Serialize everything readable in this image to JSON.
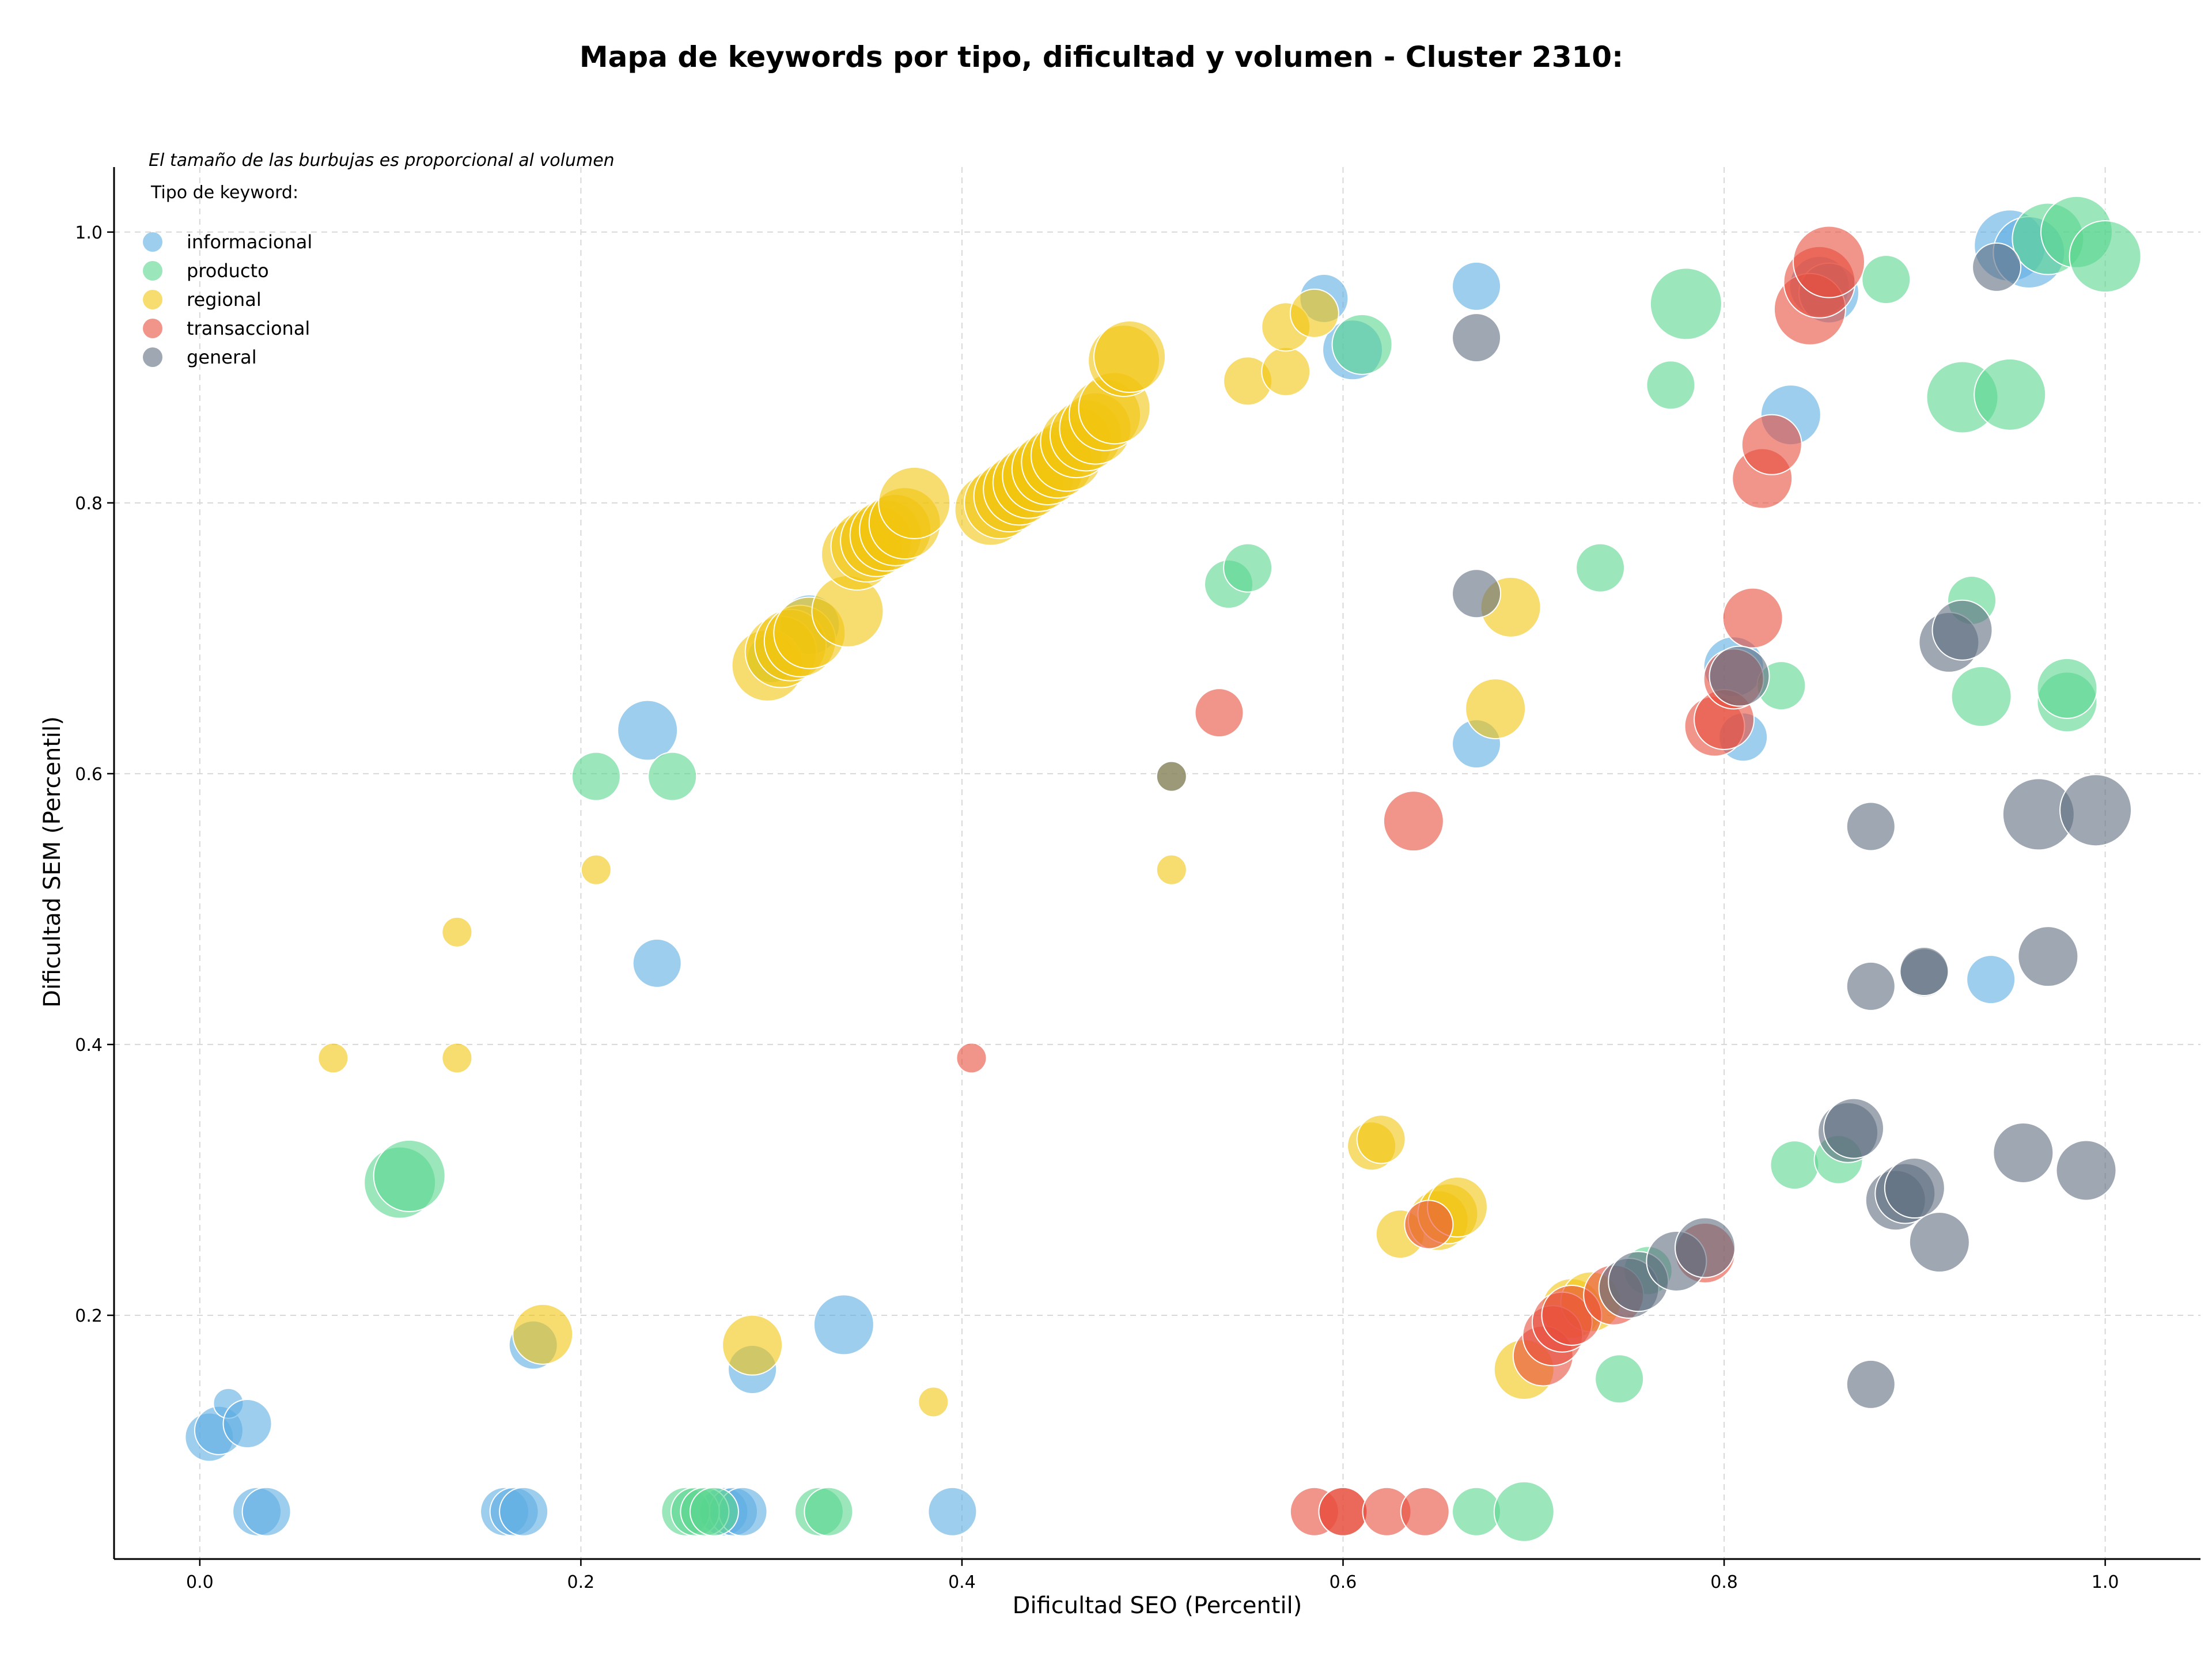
{
  "chart_data": {
    "type": "scatter",
    "title": "Mapa de keywords por tipo, dificultad y volumen - Cluster 2310:",
    "xlabel": "Dificultad SEO (Percentil)",
    "ylabel": "Dificultad SEM (Percentil)",
    "xlim": [
      -0.045,
      1.05
    ],
    "ylim": [
      0.02,
      1.048
    ],
    "x_ticks": [
      "0.0",
      "0.2",
      "0.4",
      "0.6",
      "0.8",
      "1.0"
    ],
    "y_ticks": [
      "0.2",
      "0.4",
      "0.6",
      "0.8",
      "1.0"
    ],
    "grid": true,
    "legend_position": "top-left",
    "annotation": "El tamaño de las burbujas es proporcional al volumen",
    "legend_title": "Tipo de keyword:",
    "series": [
      {
        "name": "informacional",
        "color": "#5dade2",
        "points": [
          [
            0.005,
            0.11,
            2
          ],
          [
            0.01,
            0.115,
            2
          ],
          [
            0.015,
            0.135,
            1
          ],
          [
            0.025,
            0.12,
            2
          ],
          [
            0.03,
            0.055,
            2
          ],
          [
            0.035,
            0.055,
            2
          ],
          [
            0.16,
            0.055,
            2
          ],
          [
            0.165,
            0.055,
            2
          ],
          [
            0.17,
            0.055,
            2
          ],
          [
            0.175,
            0.178,
            2
          ],
          [
            0.235,
            0.632,
            3
          ],
          [
            0.24,
            0.46,
            2
          ],
          [
            0.275,
            0.055,
            2
          ],
          [
            0.28,
            0.055,
            2
          ],
          [
            0.285,
            0.055,
            2
          ],
          [
            0.29,
            0.16,
            2
          ],
          [
            0.32,
            0.71,
            3
          ],
          [
            0.338,
            0.193,
            3
          ],
          [
            0.395,
            0.055,
            2
          ],
          [
            0.59,
            0.951,
            2
          ],
          [
            0.605,
            0.913,
            3
          ],
          [
            0.67,
            0.96,
            2
          ],
          [
            0.67,
            0.622,
            2
          ],
          [
            0.805,
            0.679,
            3
          ],
          [
            0.81,
            0.627,
            2
          ],
          [
            0.835,
            0.865,
            3
          ],
          [
            0.85,
            0.96,
            3
          ],
          [
            0.855,
            0.955,
            3
          ],
          [
            0.94,
            0.448,
            2
          ],
          [
            0.95,
            0.99,
            4
          ],
          [
            0.96,
            0.985,
            4
          ]
        ]
      },
      {
        "name": "producto",
        "color": "#58d68d",
        "points": [
          [
            0.105,
            0.298,
            4
          ],
          [
            0.11,
            0.303,
            4
          ],
          [
            0.208,
            0.598,
            2
          ],
          [
            0.248,
            0.598,
            2
          ],
          [
            0.255,
            0.055,
            2
          ],
          [
            0.26,
            0.055,
            2
          ],
          [
            0.265,
            0.055,
            2
          ],
          [
            0.27,
            0.055,
            2
          ],
          [
            0.3,
            0.685,
            2
          ],
          [
            0.325,
            0.055,
            2
          ],
          [
            0.33,
            0.055,
            2
          ],
          [
            0.54,
            0.74,
            2
          ],
          [
            0.55,
            0.752,
            2
          ],
          [
            0.61,
            0.917,
            3
          ],
          [
            0.67,
            0.055,
            2
          ],
          [
            0.695,
            0.055,
            3
          ],
          [
            0.735,
            0.752,
            2
          ],
          [
            0.745,
            0.153,
            2
          ],
          [
            0.76,
            0.233,
            2
          ],
          [
            0.772,
            0.887,
            2
          ],
          [
            0.78,
            0.947,
            4
          ],
          [
            0.83,
            0.665,
            2
          ],
          [
            0.837,
            0.311,
            2
          ],
          [
            0.86,
            0.315,
            2
          ],
          [
            0.885,
            0.965,
            2
          ],
          [
            0.925,
            0.878,
            4
          ],
          [
            0.93,
            0.728,
            2
          ],
          [
            0.935,
            0.657,
            3
          ],
          [
            0.95,
            0.88,
            4
          ],
          [
            0.97,
            0.995,
            4
          ],
          [
            0.98,
            0.653,
            3
          ],
          [
            0.98,
            0.663,
            3
          ],
          [
            0.985,
            1.0,
            4
          ],
          [
            1.0,
            0.982,
            4
          ]
        ]
      },
      {
        "name": "regional",
        "color": "#f1c40f",
        "points": [
          [
            0.07,
            0.39,
            1
          ],
          [
            0.135,
            0.39,
            1
          ],
          [
            0.135,
            0.483,
            1
          ],
          [
            0.18,
            0.186,
            3
          ],
          [
            0.208,
            0.529,
            1
          ],
          [
            0.29,
            0.178,
            3
          ],
          [
            0.298,
            0.68,
            4
          ],
          [
            0.305,
            0.69,
            4
          ],
          [
            0.31,
            0.695,
            4
          ],
          [
            0.315,
            0.698,
            4
          ],
          [
            0.32,
            0.704,
            4
          ],
          [
            0.34,
            0.72,
            4
          ],
          [
            0.345,
            0.762,
            4
          ],
          [
            0.35,
            0.768,
            4
          ],
          [
            0.355,
            0.772,
            4
          ],
          [
            0.36,
            0.776,
            4
          ],
          [
            0.365,
            0.78,
            4
          ],
          [
            0.37,
            0.785,
            4
          ],
          [
            0.375,
            0.8,
            4
          ],
          [
            0.385,
            0.136,
            1
          ],
          [
            0.415,
            0.795,
            4
          ],
          [
            0.42,
            0.8,
            4
          ],
          [
            0.425,
            0.805,
            4
          ],
          [
            0.43,
            0.81,
            4
          ],
          [
            0.435,
            0.815,
            4
          ],
          [
            0.44,
            0.82,
            4
          ],
          [
            0.445,
            0.825,
            4
          ],
          [
            0.45,
            0.83,
            4
          ],
          [
            0.455,
            0.835,
            4
          ],
          [
            0.46,
            0.845,
            4
          ],
          [
            0.465,
            0.85,
            4
          ],
          [
            0.47,
            0.855,
            4
          ],
          [
            0.475,
            0.865,
            4
          ],
          [
            0.48,
            0.87,
            4
          ],
          [
            0.485,
            0.905,
            4
          ],
          [
            0.488,
            0.908,
            4
          ],
          [
            0.51,
            0.529,
            1
          ],
          [
            0.51,
            0.598,
            1
          ],
          [
            0.55,
            0.89,
            2
          ],
          [
            0.57,
            0.897,
            2
          ],
          [
            0.57,
            0.93,
            2
          ],
          [
            0.585,
            0.94,
            2
          ],
          [
            0.615,
            0.325,
            2
          ],
          [
            0.62,
            0.33,
            2
          ],
          [
            0.63,
            0.26,
            2
          ],
          [
            0.65,
            0.27,
            3
          ],
          [
            0.655,
            0.275,
            3
          ],
          [
            0.66,
            0.28,
            3
          ],
          [
            0.68,
            0.648,
            3
          ],
          [
            0.688,
            0.723,
            3
          ],
          [
            0.695,
            0.16,
            3
          ],
          [
            0.72,
            0.205,
            3
          ],
          [
            0.73,
            0.21,
            3
          ]
        ]
      },
      {
        "name": "transaccional",
        "color": "#e74c3c",
        "points": [
          [
            0.405,
            0.39,
            1
          ],
          [
            0.535,
            0.645,
            2
          ],
          [
            0.585,
            0.055,
            2
          ],
          [
            0.6,
            0.055,
            2
          ],
          [
            0.6,
            0.055,
            2
          ],
          [
            0.623,
            0.055,
            2
          ],
          [
            0.637,
            0.565,
            3
          ],
          [
            0.643,
            0.055,
            2
          ],
          [
            0.645,
            0.267,
            2
          ],
          [
            0.705,
            0.17,
            3
          ],
          [
            0.71,
            0.185,
            3
          ],
          [
            0.715,
            0.195,
            3
          ],
          [
            0.72,
            0.2,
            3
          ],
          [
            0.742,
            0.215,
            3
          ],
          [
            0.79,
            0.246,
            3
          ],
          [
            0.795,
            0.635,
            3
          ],
          [
            0.8,
            0.64,
            3
          ],
          [
            0.805,
            0.67,
            3
          ],
          [
            0.815,
            0.715,
            3
          ],
          [
            0.82,
            0.818,
            3
          ],
          [
            0.825,
            0.843,
            3
          ],
          [
            0.845,
            0.943,
            4
          ],
          [
            0.85,
            0.963,
            4
          ],
          [
            0.855,
            0.978,
            4
          ]
        ]
      },
      {
        "name": "general",
        "color": "#5d6d7e",
        "points": [
          [
            0.51,
            0.598,
            1
          ],
          [
            0.67,
            0.733,
            2
          ],
          [
            0.67,
            0.922,
            2
          ],
          [
            0.75,
            0.22,
            3
          ],
          [
            0.755,
            0.225,
            3
          ],
          [
            0.775,
            0.24,
            3
          ],
          [
            0.79,
            0.25,
            3
          ],
          [
            0.808,
            0.672,
            3
          ],
          [
            0.865,
            0.335,
            3
          ],
          [
            0.868,
            0.338,
            3
          ],
          [
            0.877,
            0.561,
            2
          ],
          [
            0.877,
            0.443,
            2
          ],
          [
            0.877,
            0.149,
            2
          ],
          [
            0.89,
            0.285,
            3
          ],
          [
            0.895,
            0.29,
            3
          ],
          [
            0.9,
            0.294,
            3
          ],
          [
            0.905,
            0.453,
            2
          ],
          [
            0.905,
            0.454,
            2
          ],
          [
            0.913,
            0.254,
            3
          ],
          [
            0.918,
            0.697,
            3
          ],
          [
            0.925,
            0.706,
            3
          ],
          [
            0.943,
            0.974,
            2
          ],
          [
            0.957,
            0.32,
            3
          ],
          [
            0.965,
            0.57,
            4
          ],
          [
            0.97,
            0.465,
            3
          ],
          [
            0.99,
            0.307,
            3
          ],
          [
            0.995,
            0.573,
            4
          ]
        ]
      }
    ]
  }
}
